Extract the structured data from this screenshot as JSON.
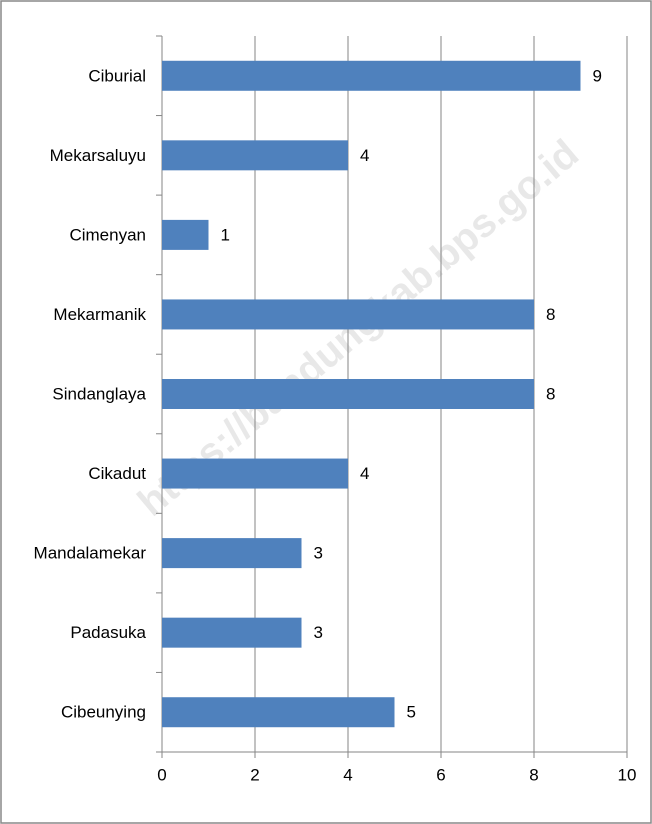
{
  "chart_data": {
    "type": "bar",
    "orientation": "horizontal",
    "categories": [
      "Ciburial",
      "Mekarsaluyu",
      "Cimenyan",
      "Mekarmanik",
      "Sindanglaya",
      "Cikadut",
      "Mandalamekar",
      "Padasuka",
      "Cibeunying"
    ],
    "values": [
      9,
      4,
      1,
      8,
      8,
      4,
      3,
      3,
      5
    ],
    "color": "#4f81bd",
    "xlim": [
      0,
      10
    ],
    "xticks": [
      0,
      2,
      4,
      6,
      8,
      10
    ],
    "grid": true,
    "watermark": "https://bandungkab.bps.go.id"
  }
}
